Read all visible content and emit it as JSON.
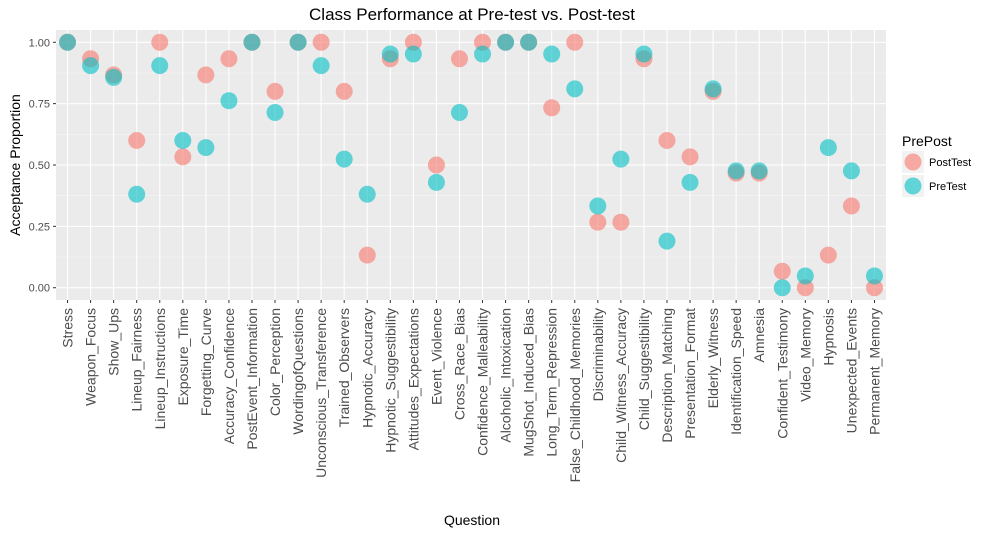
{
  "chart_data": {
    "type": "scatter",
    "title": "Class Performance at Pre-test vs. Post-test",
    "xlabel": "Question",
    "ylabel": "Acceptance Proportion",
    "ylim": [
      -0.05,
      1.05
    ],
    "yticks": [
      0.0,
      0.25,
      0.5,
      0.75,
      1.0
    ],
    "ytick_labels": [
      "0.00",
      "0.25",
      "0.50",
      "0.75",
      "1.00"
    ],
    "grid": true,
    "legend": {
      "title": "PrePost",
      "position": "right"
    },
    "categories": [
      "Stress",
      "Weapon_Focus",
      "Show_Ups",
      "Lineup_Fairness",
      "Lineup_Instructions",
      "Exposure_Time",
      "Forgetting_Curve",
      "Accuracy_Confidence",
      "PostEvent_Information",
      "Color_Perception",
      "WordingofQuestions",
      "Unconscious_Transference",
      "Trained_Observers",
      "Hypnotic_Accuracy",
      "Hypnotic_Suggestibility",
      "Attitudes_Expectations",
      "Event_Violence",
      "Cross_Race_Bias",
      "Confidence_Malleability",
      "Alcoholic_Intoxication",
      "MugShot_Induced_Bias",
      "Long_Term_Repression",
      "False_Childhood_Memories",
      "Discriminability",
      "Child_Witness_Accuracy",
      "Child_Suggestibility",
      "Description_Matching",
      "Presentation_Format",
      "Elderly_Witness",
      "Identification_Speed",
      "Amnesia",
      "Confident_Testimony",
      "Video_Memory",
      "Hypnosis",
      "Unexpected_Events",
      "Permanent_Memory"
    ],
    "series": [
      {
        "name": "PostTest",
        "color": "#F8766D",
        "values": [
          1.0,
          0.933,
          0.867,
          0.6,
          1.0,
          0.533,
          0.867,
          0.933,
          1.0,
          0.8,
          1.0,
          1.0,
          0.8,
          0.133,
          0.933,
          1.0,
          0.5,
          0.933,
          1.0,
          1.0,
          1.0,
          0.733,
          1.0,
          0.267,
          0.267,
          0.933,
          0.6,
          0.533,
          0.8,
          0.467,
          0.467,
          0.067,
          0.0,
          0.133,
          0.333,
          0.0
        ]
      },
      {
        "name": "PreTest",
        "color": "#00BFC4",
        "values": [
          1.0,
          0.905,
          0.857,
          0.381,
          0.905,
          0.6,
          0.571,
          0.762,
          1.0,
          0.714,
          1.0,
          0.905,
          0.524,
          0.381,
          0.952,
          0.952,
          0.429,
          0.714,
          0.952,
          1.0,
          1.0,
          0.952,
          0.81,
          0.333,
          0.524,
          0.952,
          0.19,
          0.429,
          0.81,
          0.476,
          0.476,
          0.0,
          0.048,
          0.571,
          0.476,
          0.048
        ]
      }
    ]
  }
}
